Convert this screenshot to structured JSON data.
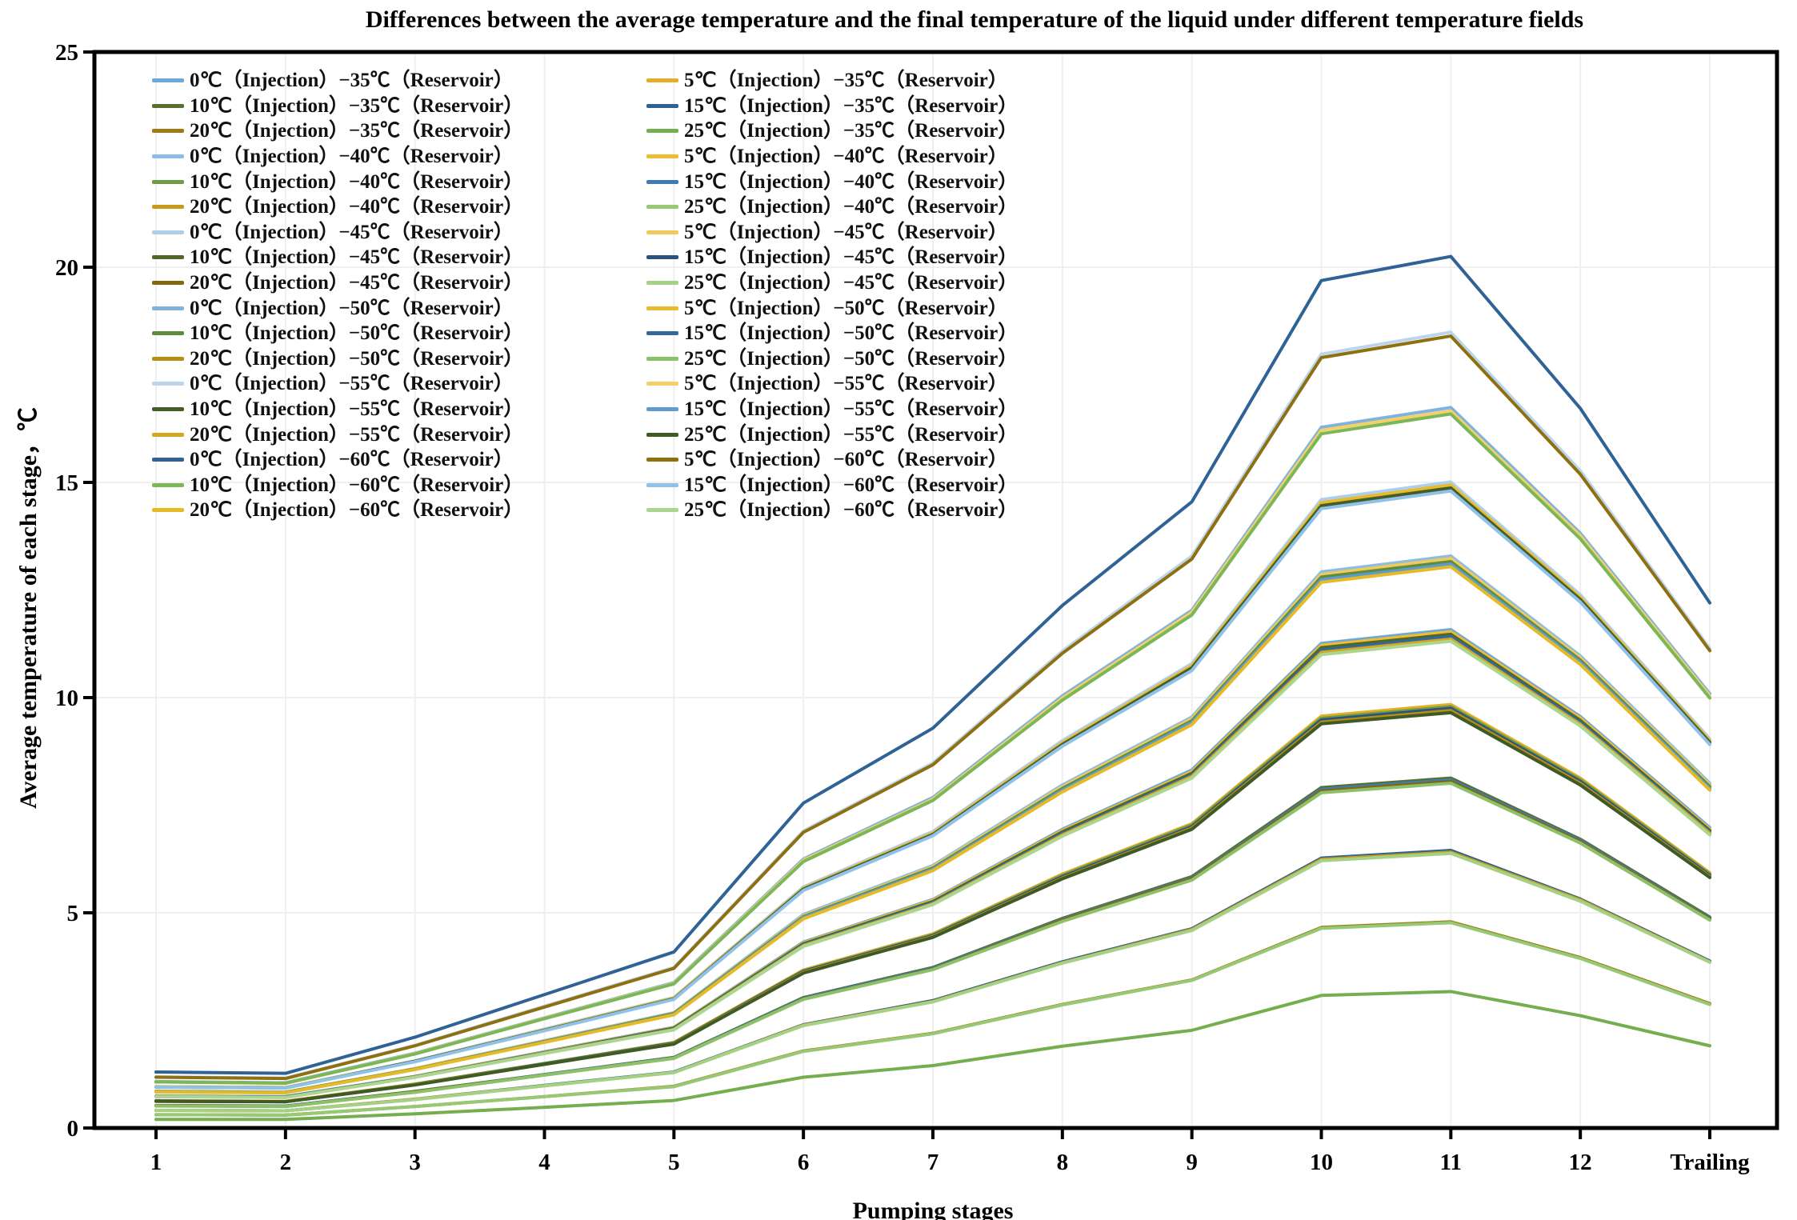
{
  "chart_data": {
    "type": "line",
    "title": "Differences between the average temperature and the final temperature of the liquid under different temperature fields",
    "xlabel": "Pumping stages",
    "ylabel": "Average temperature of each stage，℃",
    "x_categories": [
      "1",
      "2",
      "3",
      "4",
      "5",
      "6",
      "7",
      "8",
      "9",
      "10",
      "11",
      "12",
      "Trailing"
    ],
    "y_ticks": [
      0,
      5,
      10,
      15,
      20,
      25
    ],
    "ylim": [
      0,
      25
    ],
    "grid": "faint horizontal lines every 5 units and faint vertical line at every pumping stage",
    "legend_position": "top-left inside plot, two columns",
    "series": [
      {
        "name": "0℃（Injection）−35℃（Reservoir）",
        "color": "#6FA8D5",
        "values": [
          0.74,
          0.73,
          1.2,
          1.77,
          2.34,
          4.32,
          5.31,
          6.94,
          8.32,
          11.26,
          11.58,
          9.56,
          6.98
        ]
      },
      {
        "name": "5℃（Injection）−35℃（Reservoir）",
        "color": "#E3AE28",
        "values": [
          0.63,
          0.62,
          1.02,
          1.5,
          1.99,
          3.67,
          4.51,
          5.9,
          7.07,
          9.57,
          9.84,
          8.13,
          5.93
        ]
      },
      {
        "name": "10℃（Injection）−35℃（Reservoir）",
        "color": "#55702F",
        "values": [
          0.52,
          0.51,
          0.85,
          1.24,
          1.64,
          3.03,
          3.73,
          4.87,
          5.84,
          7.91,
          8.13,
          6.71,
          4.9
        ]
      },
      {
        "name": "15℃（Injection）−35℃（Reservoir）",
        "color": "#2F6293",
        "values": [
          0.41,
          0.4,
          0.67,
          0.99,
          1.3,
          2.4,
          2.96,
          3.86,
          4.63,
          6.27,
          6.45,
          5.32,
          3.88
        ]
      },
      {
        "name": "20℃（Injection）−35℃（Reservoir）",
        "color": "#9D7A12",
        "values": [
          0.31,
          0.3,
          0.5,
          0.73,
          0.97,
          1.79,
          2.2,
          2.87,
          3.44,
          4.66,
          4.79,
          3.96,
          2.89
        ]
      },
      {
        "name": "25℃（Injection）−35℃（Reservoir）",
        "color": "#74AE4E",
        "values": [
          0.2,
          0.2,
          0.33,
          0.48,
          0.64,
          1.18,
          1.45,
          1.9,
          2.27,
          3.08,
          3.17,
          2.61,
          1.91
        ]
      },
      {
        "name": "0℃（Injection）−40℃（Reservoir）",
        "color": "#8FBCE2",
        "values": [
          0.85,
          0.83,
          1.38,
          2.03,
          2.68,
          4.96,
          6.1,
          7.97,
          9.55,
          12.92,
          13.29,
          10.97,
          8.01
        ]
      },
      {
        "name": "5℃（Injection）−40℃（Reservoir）",
        "color": "#EDBE33",
        "values": [
          0.74,
          0.72,
          1.2,
          1.76,
          2.33,
          4.3,
          5.29,
          6.91,
          8.28,
          11.21,
          11.53,
          9.52,
          6.94
        ]
      },
      {
        "name": "10℃（Injection）−40℃（Reservoir）",
        "color": "#6E9C47",
        "values": [
          0.63,
          0.61,
          1.02,
          1.5,
          1.98,
          3.65,
          4.49,
          5.87,
          7.04,
          9.52,
          9.79,
          8.09,
          5.9
        ]
      },
      {
        "name": "15℃（Injection）−40℃（Reservoir）",
        "color": "#3F7BB5",
        "values": [
          0.52,
          0.51,
          0.84,
          1.24,
          1.63,
          3.02,
          3.71,
          4.85,
          5.81,
          7.87,
          8.09,
          6.68,
          4.87
        ]
      },
      {
        "name": "20℃（Injection）−40℃（Reservoir）",
        "color": "#C89C1B",
        "values": [
          0.41,
          0.4,
          0.67,
          0.98,
          1.29,
          2.39,
          2.94,
          3.84,
          4.61,
          6.24,
          6.41,
          5.3,
          3.86
        ]
      },
      {
        "name": "25℃（Injection）−40℃（Reservoir）",
        "color": "#97C873",
        "values": [
          0.31,
          0.3,
          0.5,
          0.73,
          0.96,
          1.78,
          2.19,
          2.86,
          3.43,
          4.64,
          4.77,
          3.94,
          2.87
        ]
      },
      {
        "name": "0℃（Injection）−45℃（Reservoir）",
        "color": "#AECFE9",
        "values": [
          0.96,
          0.94,
          1.56,
          2.3,
          3.03,
          5.6,
          6.89,
          9.0,
          10.79,
          14.6,
          15.01,
          12.39,
          9.04
        ]
      },
      {
        "name": "5℃（Injection）−45℃（Reservoir）",
        "color": "#F0CB5B",
        "values": [
          0.85,
          0.83,
          1.38,
          2.02,
          2.67,
          4.93,
          6.07,
          7.93,
          9.51,
          12.86,
          13.23,
          10.92,
          7.97
        ]
      },
      {
        "name": "10℃（Injection）−45℃（Reservoir）",
        "color": "#4F672B",
        "values": [
          0.74,
          0.72,
          1.19,
          1.75,
          2.32,
          4.28,
          5.26,
          6.88,
          8.24,
          11.16,
          11.47,
          9.47,
          6.91
        ]
      },
      {
        "name": "15℃（Injection）−45℃（Reservoir）",
        "color": "#2A547E",
        "values": [
          0.63,
          0.61,
          1.01,
          1.49,
          1.97,
          3.64,
          4.47,
          5.84,
          7.0,
          9.48,
          9.75,
          8.05,
          5.87
        ]
      },
      {
        "name": "20℃（Injection）−45℃（Reservoir）",
        "color": "#836710",
        "values": [
          0.52,
          0.5,
          0.84,
          1.23,
          1.62,
          3.0,
          3.69,
          4.83,
          5.79,
          7.83,
          8.05,
          6.65,
          4.85
        ]
      },
      {
        "name": "25℃（Injection）−45℃（Reservoir）",
        "color": "#A5D185",
        "values": [
          0.41,
          0.4,
          0.66,
          0.98,
          1.29,
          2.38,
          2.93,
          3.83,
          4.59,
          6.21,
          6.38,
          5.27,
          3.85
        ]
      },
      {
        "name": "0℃（Injection）−50℃（Reservoir）",
        "color": "#7FB2DC",
        "values": [
          1.08,
          1.05,
          1.74,
          2.56,
          3.38,
          6.25,
          7.68,
          10.04,
          12.03,
          16.28,
          16.74,
          13.82,
          10.09
        ]
      },
      {
        "name": "5℃（Injection）−50℃（Reservoir）",
        "color": "#E9BA30",
        "values": [
          0.96,
          0.94,
          1.55,
          2.28,
          3.02,
          5.57,
          6.85,
          8.95,
          10.74,
          14.53,
          14.94,
          12.33,
          9.0
        ]
      },
      {
        "name": "10℃（Injection）−50℃（Reservoir）",
        "color": "#5E8C3D",
        "values": [
          0.85,
          0.83,
          1.37,
          2.01,
          2.66,
          4.91,
          6.04,
          7.89,
          9.46,
          12.8,
          13.16,
          10.87,
          7.93
        ]
      },
      {
        "name": "15℃（Injection）−50℃（Reservoir）",
        "color": "#33689D",
        "values": [
          0.73,
          0.72,
          1.19,
          1.75,
          2.3,
          4.26,
          5.24,
          6.84,
          8.21,
          11.1,
          11.42,
          9.43,
          6.88
        ]
      },
      {
        "name": "20℃（Injection）−50℃（Reservoir）",
        "color": "#B78D16",
        "values": [
          0.62,
          0.61,
          1.01,
          1.48,
          1.96,
          3.62,
          4.45,
          5.81,
          6.97,
          9.43,
          9.7,
          8.01,
          5.84
        ]
      },
      {
        "name": "25℃（Injection）−50℃（Reservoir）",
        "color": "#8CC167",
        "values": [
          0.51,
          0.5,
          0.83,
          1.23,
          1.62,
          2.99,
          3.68,
          4.8,
          5.76,
          7.79,
          8.01,
          6.62,
          4.83
        ]
      },
      {
        "name": "0℃（Injection）−55℃（Reservoir）",
        "color": "#BBD6EC",
        "values": [
          1.19,
          1.16,
          1.92,
          2.83,
          3.73,
          6.9,
          8.48,
          11.08,
          13.29,
          17.98,
          18.49,
          15.27,
          11.14
        ]
      },
      {
        "name": "5℃（Injection）−55℃（Reservoir）",
        "color": "#F3D06B",
        "values": [
          1.07,
          1.04,
          1.73,
          2.55,
          3.36,
          6.22,
          7.64,
          9.99,
          11.98,
          16.21,
          16.66,
          13.76,
          10.04
        ]
      },
      {
        "name": "10℃（Injection）−55℃（Reservoir）",
        "color": "#435E27",
        "values": [
          0.95,
          0.93,
          1.55,
          2.27,
          3.0,
          5.55,
          6.82,
          8.91,
          10.69,
          14.46,
          14.87,
          12.28,
          8.96
        ]
      },
      {
        "name": "15℃（Injection）−55℃（Reservoir）",
        "color": "#5E9CD0",
        "values": [
          0.84,
          0.82,
          1.36,
          2.0,
          2.64,
          4.89,
          6.01,
          7.85,
          9.42,
          12.74,
          13.1,
          10.82,
          7.89
        ]
      },
      {
        "name": "20℃（Injection）−55℃（Reservoir）",
        "color": "#D3A71E",
        "values": [
          0.73,
          0.71,
          1.18,
          1.74,
          2.29,
          4.24,
          5.21,
          6.81,
          8.17,
          11.05,
          11.36,
          9.38,
          6.85
        ]
      },
      {
        "name": "25℃（Injection）−55℃（Reservoir）",
        "color": "#3E5A25",
        "values": [
          0.62,
          0.61,
          1.0,
          1.48,
          1.95,
          3.6,
          4.43,
          5.79,
          6.94,
          9.39,
          9.65,
          7.97,
          5.82
        ]
      },
      {
        "name": "0℃（Injection）−60℃（Reservoir）",
        "color": "#2F6396",
        "values": [
          1.3,
          1.27,
          2.11,
          3.1,
          4.09,
          7.55,
          9.29,
          12.14,
          14.55,
          19.69,
          20.25,
          16.72,
          12.2
        ]
      },
      {
        "name": "5℃（Injection）−60℃（Reservoir）",
        "color": "#8F7011",
        "values": [
          1.18,
          1.15,
          1.91,
          2.81,
          3.71,
          6.87,
          8.44,
          11.03,
          13.22,
          17.9,
          18.4,
          15.19,
          11.09
        ]
      },
      {
        "name": "10℃（Injection）−60℃（Reservoir）",
        "color": "#7BB757",
        "values": [
          1.07,
          1.04,
          1.72,
          2.54,
          3.35,
          6.19,
          7.61,
          9.94,
          11.92,
          16.13,
          16.59,
          13.69,
          9.99
        ]
      },
      {
        "name": "15℃（Injection）−60℃（Reservoir）",
        "color": "#90C2E9",
        "values": [
          0.95,
          0.93,
          1.54,
          2.26,
          2.99,
          5.52,
          6.79,
          8.87,
          10.63,
          14.39,
          14.8,
          12.22,
          8.91
        ]
      },
      {
        "name": "20℃（Injection）−60℃（Reservoir）",
        "color": "#E5BA25",
        "values": [
          0.84,
          0.82,
          1.36,
          1.99,
          2.63,
          4.86,
          5.98,
          7.81,
          9.37,
          12.68,
          13.04,
          10.77,
          7.85
        ]
      },
      {
        "name": "25℃（Injection）−60℃（Reservoir）",
        "color": "#ABD690",
        "values": [
          0.73,
          0.71,
          1.18,
          1.73,
          2.28,
          4.22,
          5.19,
          6.78,
          8.13,
          11.0,
          11.31,
          9.34,
          6.81
        ]
      }
    ]
  },
  "style": {
    "frame_color": "#000000",
    "gridline_color": "#EFEFEF",
    "text_color": "#000000"
  }
}
